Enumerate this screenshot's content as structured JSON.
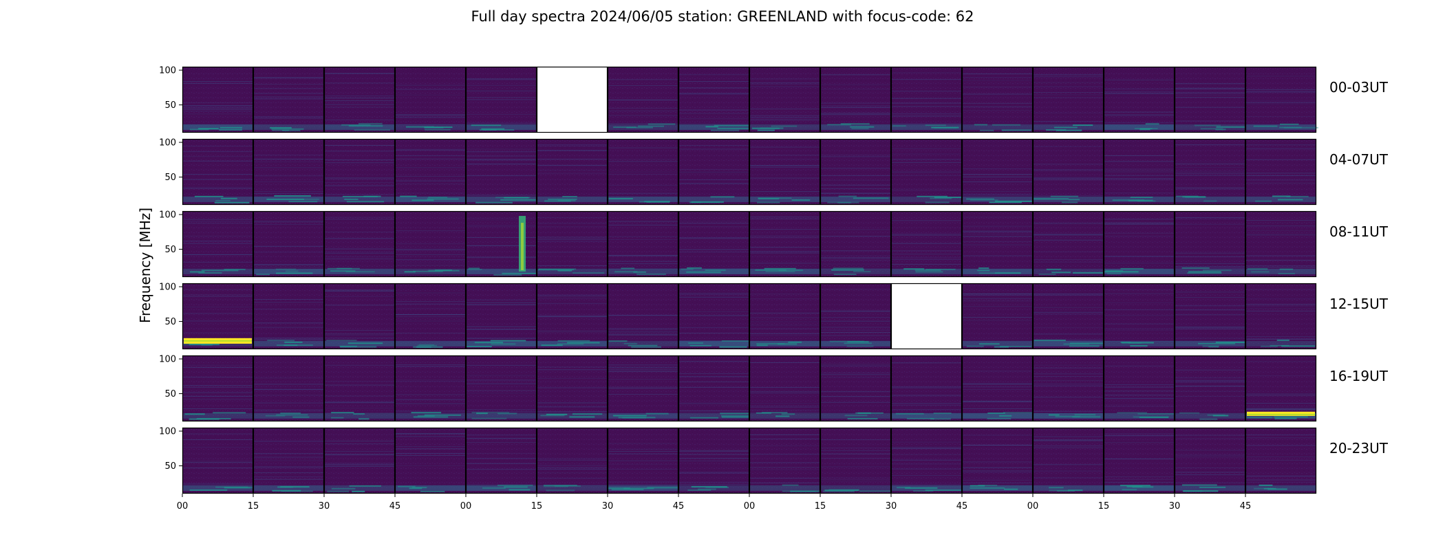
{
  "chart_data": {
    "type": "heatmap",
    "title": "Full day spectra 2024/06/05 station: GREENLAND with focus-code: 62",
    "ylabel": "Frequency [MHz]",
    "ylim": [
      10,
      105
    ],
    "yticks": [
      100,
      50
    ],
    "xticks": [
      "00",
      "15",
      "30",
      "45",
      "00",
      "15",
      "30",
      "45",
      "00",
      "15",
      "30",
      "45",
      "00",
      "15",
      "30",
      "45"
    ],
    "colormap": {
      "background": "#440f55",
      "mid": "#26828e",
      "high": "#fde725"
    },
    "rows": [
      {
        "label": "00-03UT",
        "missing_panels": [
          5
        ]
      },
      {
        "label": "04-07UT",
        "missing_panels": []
      },
      {
        "label": "08-11UT",
        "missing_panels": []
      },
      {
        "label": "12-15UT",
        "missing_panels": [
          10
        ]
      },
      {
        "label": "16-19UT",
        "missing_panels": []
      },
      {
        "label": "20-23UT",
        "missing_panels": []
      }
    ],
    "panels_per_row": 16,
    "panel_minutes": 15,
    "features": [
      {
        "row": 2,
        "panel": 4,
        "kind": "vertical-burst",
        "freq_range": [
          18,
          98
        ]
      },
      {
        "row": 3,
        "panel": 0,
        "kind": "strong-band",
        "freq_range": [
          18,
          26
        ]
      },
      {
        "row": 4,
        "panel": 15,
        "kind": "strong-band",
        "freq_range": [
          18,
          24
        ]
      }
    ]
  }
}
